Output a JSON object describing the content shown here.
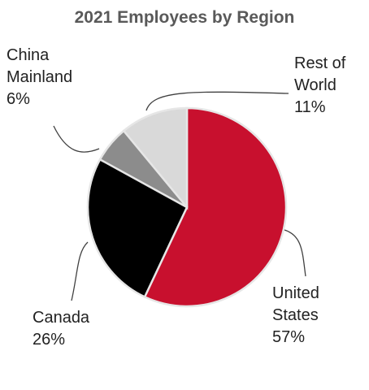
{
  "chart_data": {
    "type": "pie",
    "title": "2021 Employees by Region",
    "categories": [
      "United States",
      "Canada",
      "China Mainland",
      "Rest of World"
    ],
    "values": [
      57,
      26,
      6,
      11
    ],
    "value_labels": [
      "57%",
      "26%",
      "6%",
      "11%"
    ],
    "colors": [
      "#c8102e",
      "#000000",
      "#8c8c8c",
      "#d9d9d9"
    ]
  }
}
